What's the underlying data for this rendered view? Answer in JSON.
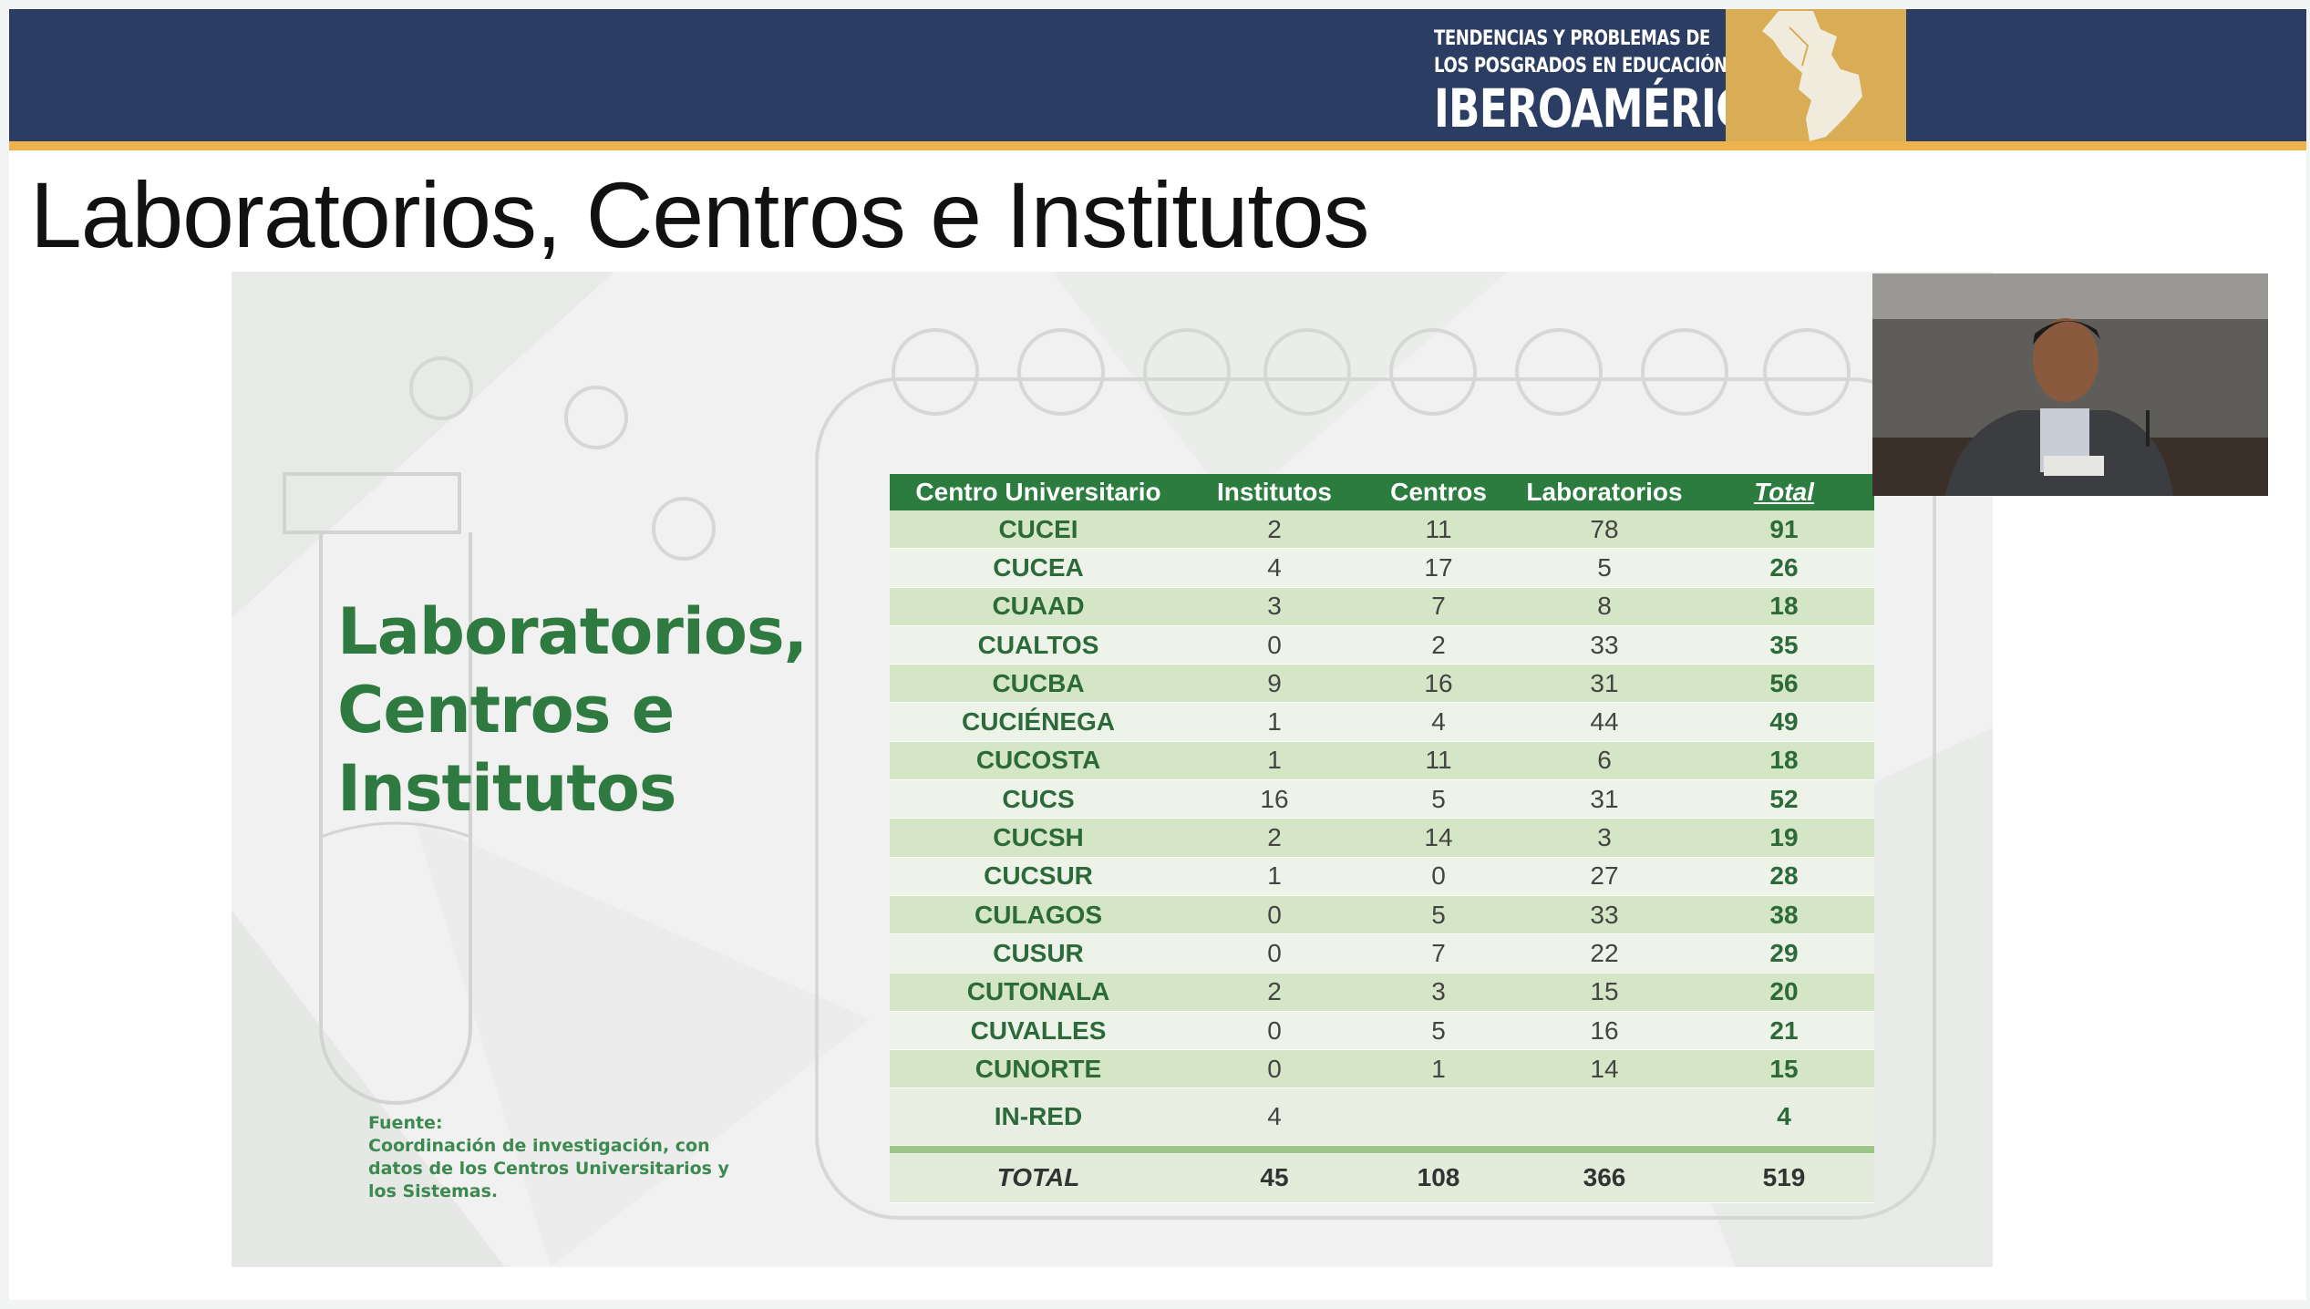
{
  "banner": {
    "logo_line1": "TENDENCIAS Y PROBLEMAS DE",
    "logo_line2": "LOS POSGRADOS EN EDUCACIÓN EN",
    "logo_line3": "IBEROAMÉRICA"
  },
  "slide": {
    "title": "Laboratorios, Centros e Institutos",
    "side_title_lines": [
      "Laboratorios,",
      "Centros e",
      "Institutos"
    ],
    "source_lines": [
      "Fuente:",
      "Coordinación de investigación, con",
      "datos de los Centros Universitarios y",
      "los Sistemas."
    ]
  },
  "table": {
    "headers": [
      "Centro Universitario",
      "Institutos",
      "Centros",
      "Laboratorios",
      "Total"
    ],
    "rows": [
      [
        "CUCEI",
        "2",
        "11",
        "78",
        "91"
      ],
      [
        "CUCEA",
        "4",
        "17",
        "5",
        "26"
      ],
      [
        "CUAAD",
        "3",
        "7",
        "8",
        "18"
      ],
      [
        "CUALTOS",
        "0",
        "2",
        "33",
        "35"
      ],
      [
        "CUCBA",
        "9",
        "16",
        "31",
        "56"
      ],
      [
        "CUCIÉNEGA",
        "1",
        "4",
        "44",
        "49"
      ],
      [
        "CUCOSTA",
        "1",
        "11",
        "6",
        "18"
      ],
      [
        "CUCS",
        "16",
        "5",
        "31",
        "52"
      ],
      [
        "CUCSH",
        "2",
        "14",
        "3",
        "19"
      ],
      [
        "CUCSUR",
        "1",
        "0",
        "27",
        "28"
      ],
      [
        "CULAGOS",
        "0",
        "5",
        "33",
        "38"
      ],
      [
        "CUSUR",
        "0",
        "7",
        "22",
        "29"
      ],
      [
        "CUTONALA",
        "2",
        "3",
        "15",
        "20"
      ],
      [
        "CUVALLES",
        "0",
        "5",
        "16",
        "21"
      ],
      [
        "CUNORTE",
        "0",
        "1",
        "14",
        "15"
      ],
      [
        "IN-RED",
        "4",
        "",
        "",
        "4"
      ]
    ],
    "total_row": [
      "TOTAL",
      "45",
      "108",
      "366",
      "519"
    ]
  },
  "colors": {
    "banner_bg": "#2b3d63",
    "banner_stripe": "#f0b24c",
    "table_header": "#2d7c3f",
    "row_odd": "#d5e6c7",
    "row_even": "#eef3ea",
    "accent_green": "#2f7a40"
  },
  "icons": {
    "logo_map": "latin-america-map-icon",
    "webcam": "presenter-video-feed"
  }
}
